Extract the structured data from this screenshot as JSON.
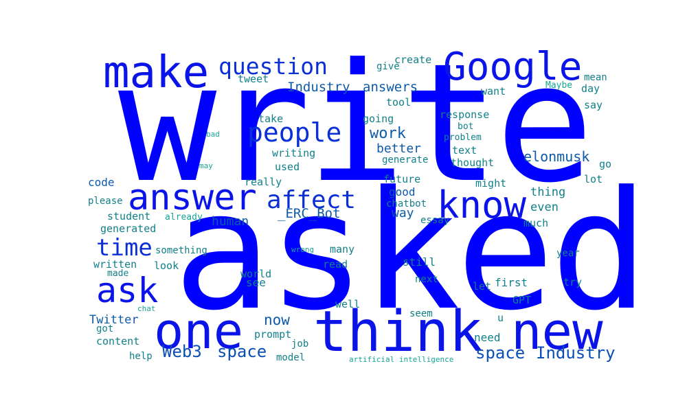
{
  "palette": {
    "large": "#0000ff",
    "medium": "#0a2fd6",
    "medium2": "#0d5aa8",
    "small": "#11808a",
    "tiny": "#16a596"
  },
  "words": [
    "write",
    "asked",
    "think",
    "new",
    "one",
    "Google",
    "make",
    "know",
    "answer",
    "ask",
    "people",
    "affect",
    "time",
    "question",
    "Web3",
    "space",
    "space",
    "Industry",
    "Industry",
    "answers",
    "_ERC_Bot",
    "elonmusk",
    "now",
    "work",
    "better",
    "good",
    "way",
    "human",
    "Twitter",
    "code",
    "give",
    "create",
    "tweet",
    "take",
    "writing",
    "used",
    "really",
    "future",
    "going",
    "tool",
    "response",
    "bot",
    "text",
    "thought",
    "generate",
    "chatbot",
    "even",
    "thing",
    "much",
    "essay",
    "might",
    "lot",
    "go",
    "say",
    "day",
    "want",
    "Maybe",
    "mean",
    "please",
    "student",
    "generated",
    "already",
    "something",
    "look",
    "written",
    "made",
    "got",
    "content",
    "help",
    "world",
    "see",
    "read",
    "well",
    "many",
    "wrong",
    "still",
    "next",
    "seem",
    "job",
    "prompt",
    "model",
    "artificial intelligence",
    "need",
    "u",
    "GPT",
    "let",
    "first",
    "try",
    "year",
    "chat",
    "bad",
    "may",
    "problem"
  ]
}
